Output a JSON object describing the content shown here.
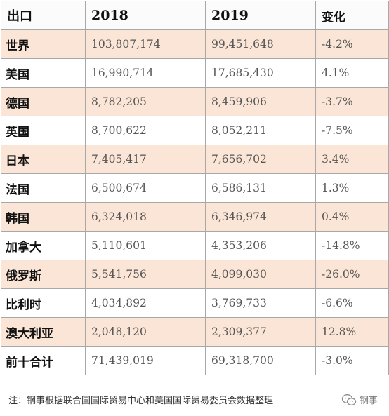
{
  "table": {
    "headers": {
      "label": "出口",
      "y2018": "2018",
      "y2019": "2019",
      "change": "变化"
    },
    "rows": [
      {
        "name": "世界",
        "y2018": "103,807,174",
        "y2019": "99,451,648",
        "change": "-4.2%"
      },
      {
        "name": "美国",
        "y2018": "16,990,714",
        "y2019": "17,685,430",
        "change": "4.1%"
      },
      {
        "name": "德国",
        "y2018": "8,782,205",
        "y2019": "8,459,906",
        "change": "-3.7%"
      },
      {
        "name": "英国",
        "y2018": "8,700,622",
        "y2019": "8,052,211",
        "change": "-7.5%"
      },
      {
        "name": "日本",
        "y2018": "7,405,417",
        "y2019": "7,656,702",
        "change": "3.4%"
      },
      {
        "name": "法国",
        "y2018": "6,500,674",
        "y2019": "6,586,131",
        "change": "1.3%"
      },
      {
        "name": "韩国",
        "y2018": "6,324,018",
        "y2019": "6,346,974",
        "change": "0.4%"
      },
      {
        "name": "加拿大",
        "y2018": "5,110,601",
        "y2019": "4,353,206",
        "change": "-14.8%"
      },
      {
        "name": "俄罗斯",
        "y2018": "5,541,756",
        "y2019": "4,099,030",
        "change": "-26.0%"
      },
      {
        "name": "比利时",
        "y2018": "4,034,892",
        "y2019": "3,769,733",
        "change": "-6.6%"
      },
      {
        "name": "澳大利亚",
        "y2018": "2,048,120",
        "y2019": "2,309,377",
        "change": "12.8%"
      },
      {
        "name": "前十合计",
        "y2018": "71,439,019",
        "y2019": "69,318,700",
        "change": "-3.0%"
      }
    ]
  },
  "note": "注：钢事根据联合国国际贸易中心和美国国际贸易委员会数据整理",
  "watermark": {
    "text": "钢事",
    "icon": "wechat-icon"
  },
  "colors": {
    "alt_row": "#fbe5d6",
    "border": "#a8a8a8"
  }
}
